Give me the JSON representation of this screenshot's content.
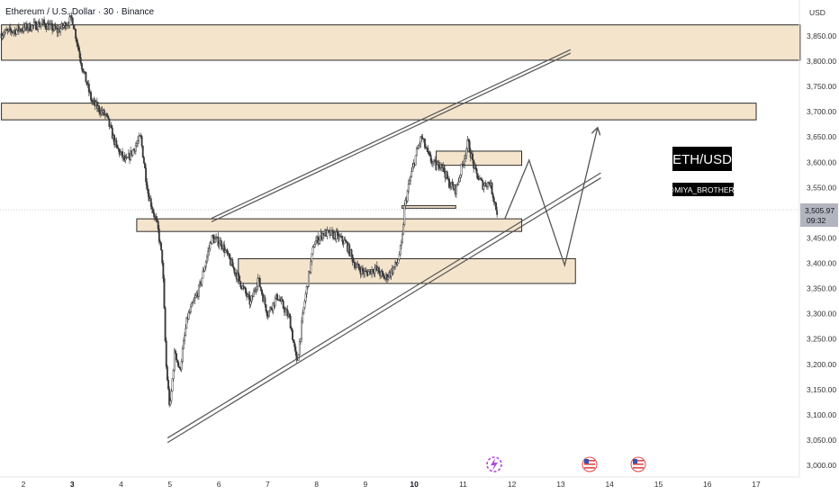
{
  "header": {
    "title": "Ethereum / U.S. Dollar · 30 · Binance"
  },
  "currency": "USD",
  "overlays": {
    "pair_label": "ETH/USD",
    "author_tag": "@MIYA_BROTHERS"
  },
  "price_tag": {
    "price": "3,505.97",
    "countdown": "09:32"
  },
  "colors": {
    "candle": "#3a3a3a",
    "zone_fill": "#f4e4cc",
    "zone_stroke": "#2b2b2b",
    "line": "#555555",
    "price_tag_bg": "#b2b5be",
    "label_bg": "#000000"
  },
  "chart_data": {
    "type": "candlestick",
    "y_axis": {
      "unit": "USD",
      "range": [
        2990,
        3890
      ],
      "ticks": [
        "3,850.00",
        "3,800.00",
        "3,750.00",
        "3,700.00",
        "3,650.00",
        "3,600.00",
        "3,550.00",
        "3,500.00",
        "3,450.00",
        "3,400.00",
        "3,350.00",
        "3,300.00",
        "3,250.00",
        "3,200.00",
        "3,150.00",
        "3,100.00",
        "3,050.00",
        "3,000.00"
      ]
    },
    "x_axis": {
      "range": [
        1.55,
        17.2
      ],
      "ticks": [
        {
          "label": "2",
          "day": 2,
          "bold": false
        },
        {
          "label": "3",
          "day": 3,
          "bold": true
        },
        {
          "label": "4",
          "day": 4,
          "bold": false
        },
        {
          "label": "5",
          "day": 5,
          "bold": false
        },
        {
          "label": "6",
          "day": 6,
          "bold": false
        },
        {
          "label": "7",
          "day": 7,
          "bold": false
        },
        {
          "label": "8",
          "day": 8,
          "bold": false
        },
        {
          "label": "9",
          "day": 9,
          "bold": false
        },
        {
          "label": "10",
          "day": 10,
          "bold": true
        },
        {
          "label": "11",
          "day": 11,
          "bold": false
        },
        {
          "label": "12",
          "day": 12,
          "bold": false
        },
        {
          "label": "13",
          "day": 13,
          "bold": false
        },
        {
          "label": "14",
          "day": 14,
          "bold": false
        },
        {
          "label": "15",
          "day": 15,
          "bold": false
        },
        {
          "label": "16",
          "day": 16,
          "bold": false
        },
        {
          "label": "17",
          "day": 17,
          "bold": false
        }
      ]
    },
    "price_path": [
      [
        1.55,
        3855
      ],
      [
        2.0,
        3865
      ],
      [
        2.4,
        3875
      ],
      [
        2.7,
        3860
      ],
      [
        3.0,
        3885
      ],
      [
        3.2,
        3790
      ],
      [
        3.4,
        3720
      ],
      [
        3.7,
        3690
      ],
      [
        3.9,
        3630
      ],
      [
        4.1,
        3600
      ],
      [
        4.4,
        3650
      ],
      [
        4.55,
        3540
      ],
      [
        4.75,
        3470
      ],
      [
        4.85,
        3400
      ],
      [
        4.92,
        3200
      ],
      [
        5.0,
        3110
      ],
      [
        5.1,
        3230
      ],
      [
        5.2,
        3185
      ],
      [
        5.35,
        3290
      ],
      [
        5.6,
        3350
      ],
      [
        5.85,
        3450
      ],
      [
        6.05,
        3440
      ],
      [
        6.3,
        3390
      ],
      [
        6.5,
        3350
      ],
      [
        6.65,
        3320
      ],
      [
        6.8,
        3370
      ],
      [
        7.0,
        3300
      ],
      [
        7.2,
        3335
      ],
      [
        7.45,
        3290
      ],
      [
        7.6,
        3200
      ],
      [
        7.75,
        3320
      ],
      [
        7.95,
        3440
      ],
      [
        8.15,
        3460
      ],
      [
        8.4,
        3455
      ],
      [
        8.6,
        3440
      ],
      [
        8.8,
        3395
      ],
      [
        9.0,
        3380
      ],
      [
        9.2,
        3390
      ],
      [
        9.4,
        3370
      ],
      [
        9.5,
        3380
      ],
      [
        9.65,
        3400
      ],
      [
        9.75,
        3440
      ],
      [
        9.8,
        3510
      ],
      [
        9.9,
        3560
      ],
      [
        10.05,
        3620
      ],
      [
        10.15,
        3650
      ],
      [
        10.3,
        3610
      ],
      [
        10.45,
        3590
      ],
      [
        10.55,
        3600
      ],
      [
        10.7,
        3560
      ],
      [
        10.85,
        3545
      ],
      [
        11.0,
        3600
      ],
      [
        11.1,
        3640
      ],
      [
        11.25,
        3580
      ],
      [
        11.4,
        3555
      ],
      [
        11.55,
        3560
      ],
      [
        11.7,
        3500
      ]
    ],
    "zones": [
      {
        "x0": 1.55,
        "x1": 17.9,
        "low": 3802,
        "high": 3872
      },
      {
        "x0": 1.55,
        "x1": 17.0,
        "low": 3684,
        "high": 3717
      },
      {
        "x0": 10.45,
        "x1": 12.2,
        "low": 3594,
        "high": 3622
      },
      {
        "x0": 4.32,
        "x1": 12.2,
        "low": 3463,
        "high": 3488
      },
      {
        "x0": 6.4,
        "x1": 13.3,
        "low": 3360,
        "high": 3409
      },
      {
        "x0": 9.75,
        "x1": 10.85,
        "low": 3509,
        "high": 3514
      }
    ],
    "trendlines": [
      {
        "name": "upper channel a",
        "p1": [
          5.85,
          3489
        ],
        "p2": [
          13.2,
          3823
        ]
      },
      {
        "name": "upper channel b",
        "p1": [
          5.85,
          3482
        ],
        "p2": [
          13.2,
          3816
        ]
      },
      {
        "name": "lower channel a",
        "p1": [
          4.95,
          3054
        ],
        "p2": [
          13.82,
          3579
        ]
      },
      {
        "name": "lower channel b",
        "p1": [
          4.95,
          3045
        ],
        "p2": [
          13.82,
          3569
        ]
      }
    ],
    "projection": [
      [
        11.85,
        3487
      ],
      [
        12.35,
        3604
      ],
      [
        13.08,
        3396
      ],
      [
        13.75,
        3667
      ]
    ],
    "current_price": 3505.97
  }
}
